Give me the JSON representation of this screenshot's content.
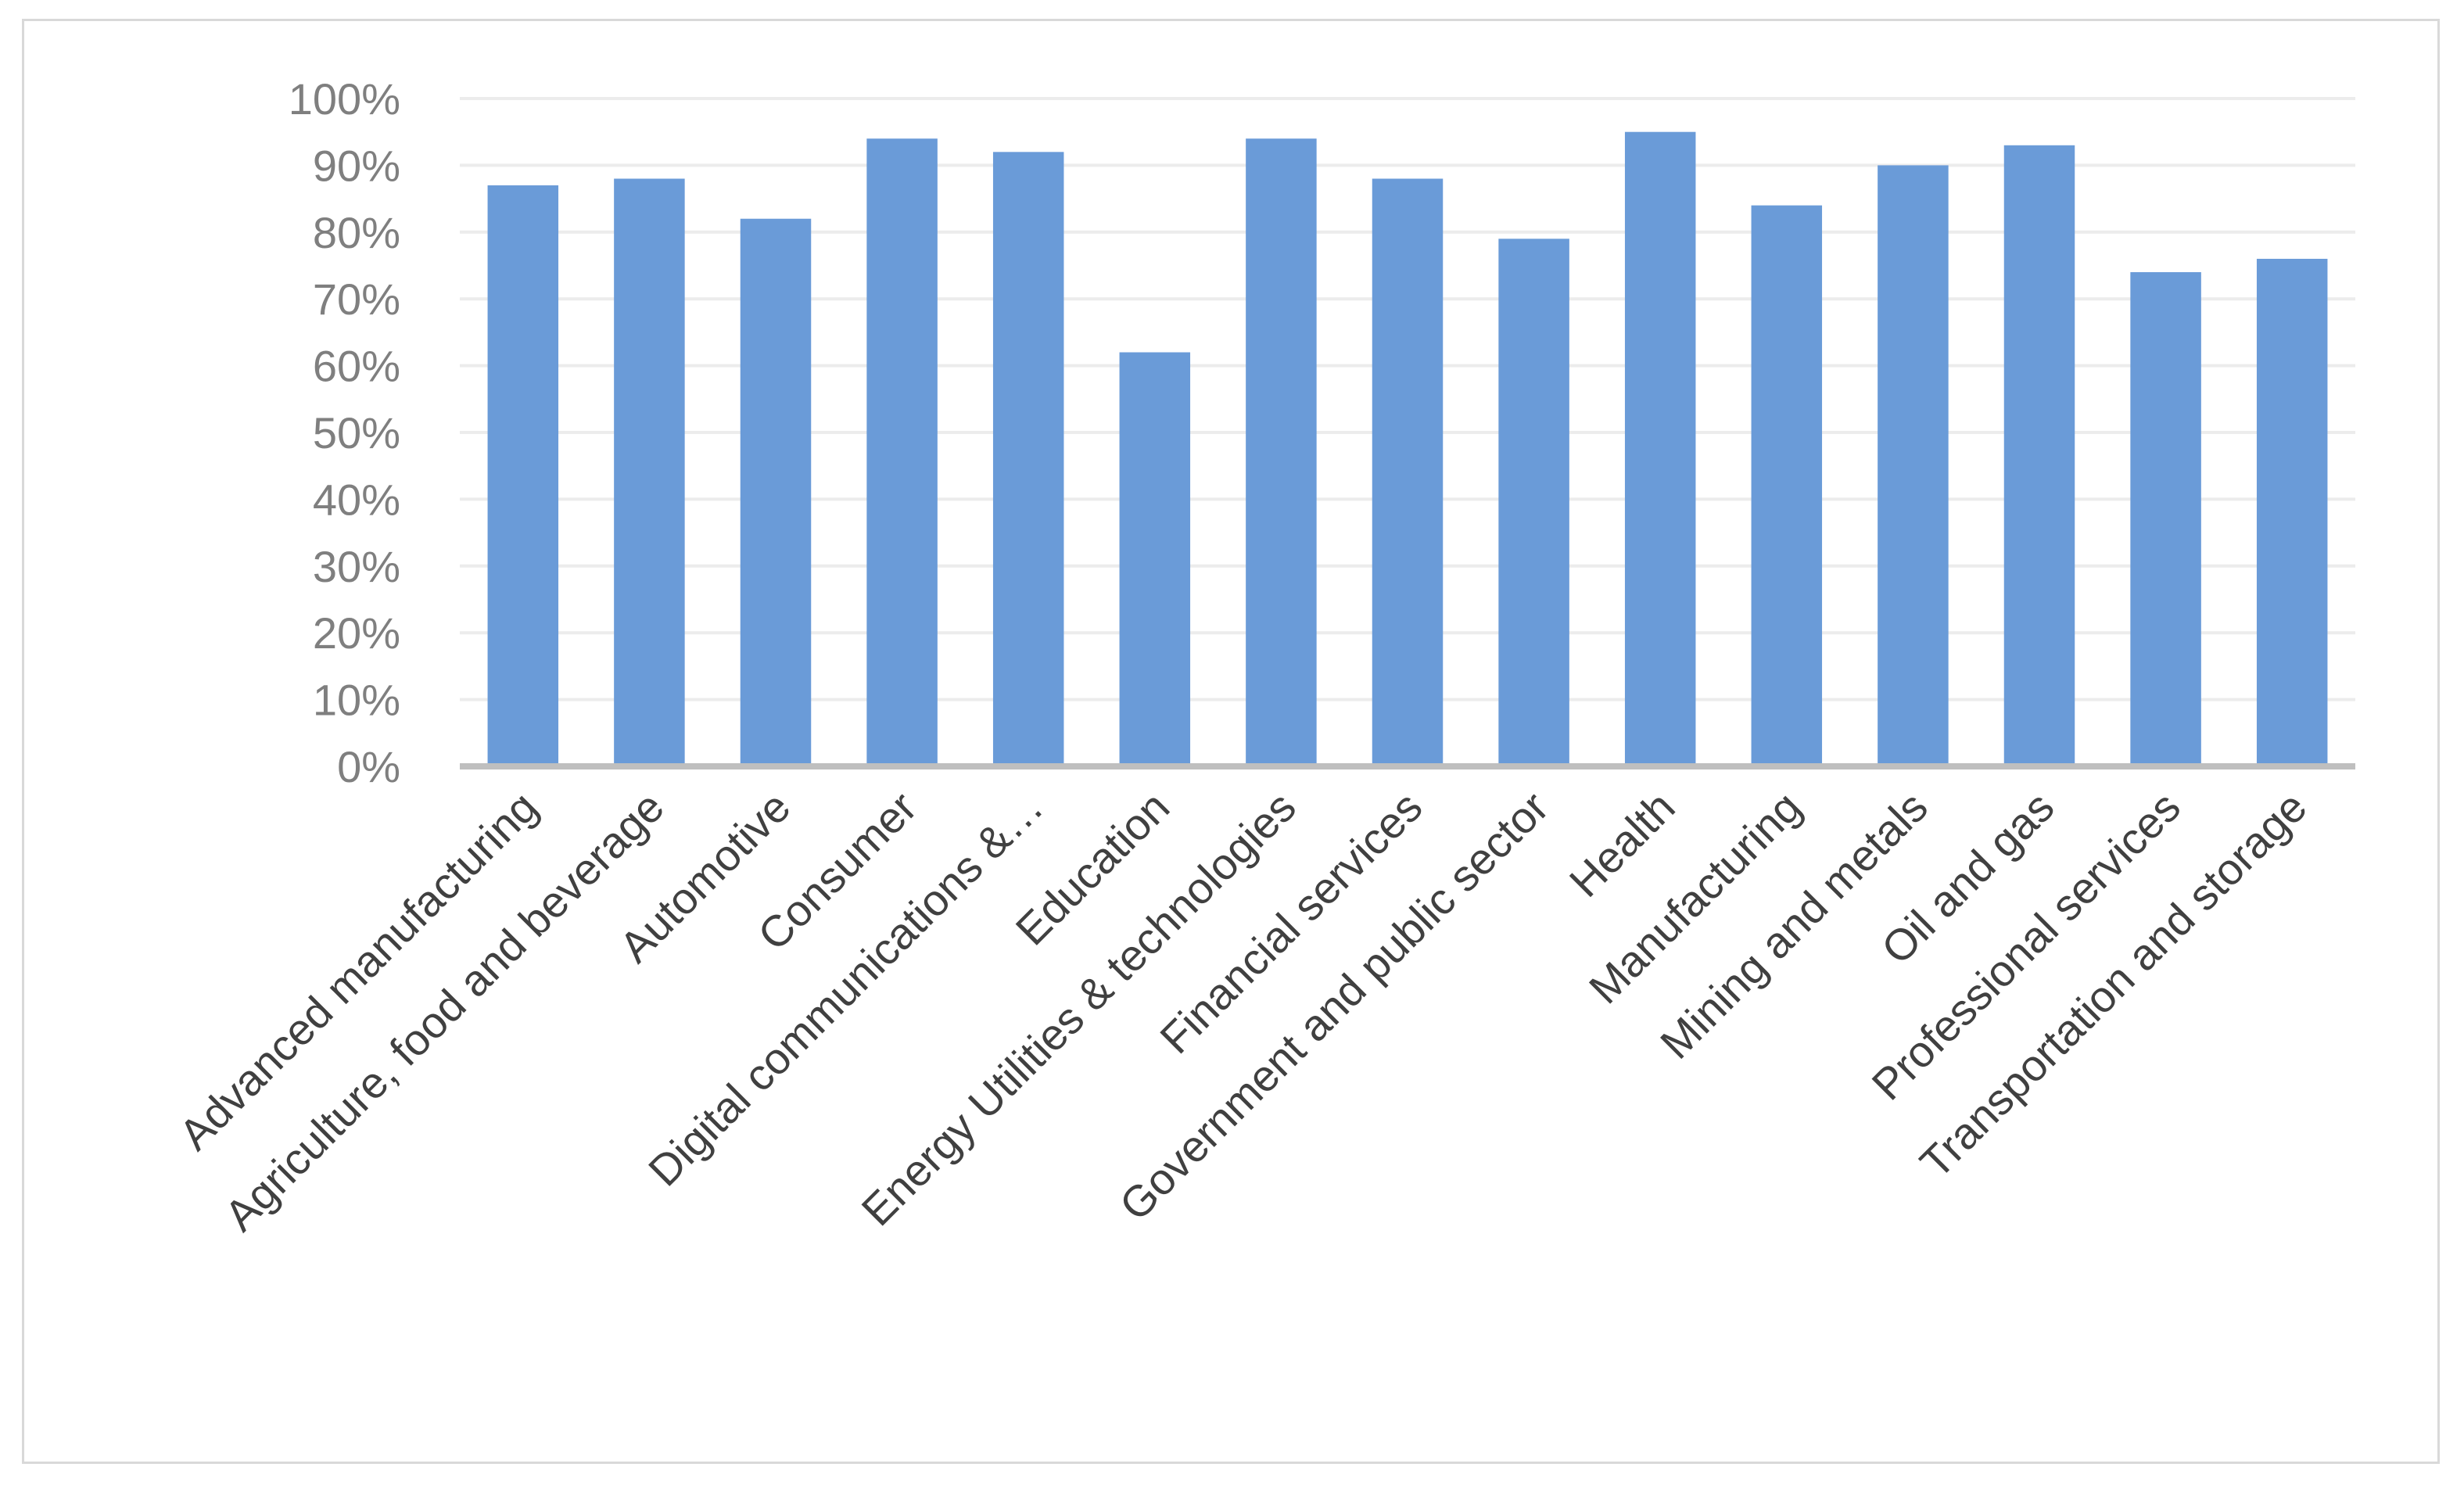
{
  "chart_data": {
    "type": "bar",
    "title": "",
    "xlabel": "",
    "ylabel": "",
    "categories": [
      "Advanced manufacturing",
      "Agriculture, food and beverage",
      "Automotive",
      "Consumer",
      "Digital communications &…",
      "Education",
      "Energy Utilities & technologies",
      "Financial services",
      "Government and public sector",
      "Health",
      "Manufacturing",
      "Mining and metals",
      "Oil and gas",
      "Professional services",
      "Transportation and storage"
    ],
    "series": [
      {
        "values": [
          87,
          88,
          82,
          94,
          92,
          62,
          94,
          88,
          79,
          95,
          84,
          90,
          93,
          74,
          76
        ]
      }
    ],
    "ylim": [
      0,
      100
    ],
    "yticks": [
      "0%",
      "10%",
      "20%",
      "30%",
      "40%",
      "50%",
      "60%",
      "70%",
      "80%",
      "90%",
      "100%"
    ],
    "grid": true,
    "legend": "none",
    "colors": {
      "bar": "#6a9bd8",
      "axis": "#bfbfbf",
      "grid": "#ececec",
      "tick_text": "#7f7f7f",
      "category_text": "#404040",
      "frame": "#d9d9d9"
    }
  }
}
